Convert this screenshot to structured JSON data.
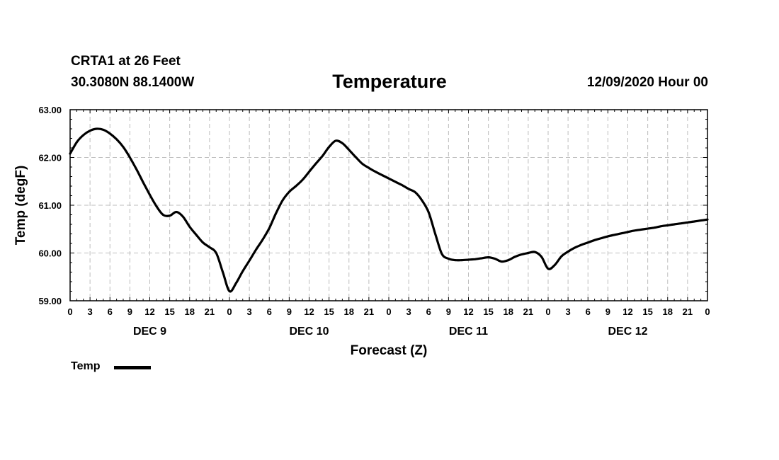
{
  "header": {
    "station": "CRTA1 at 26 Feet",
    "coords": "30.3080N 88.1400W",
    "title": "Temperature",
    "datetime": "12/09/2020 Hour 00"
  },
  "chart_data": {
    "type": "line",
    "title": "Temperature",
    "xlabel": "Forecast (Z)",
    "ylabel": "Temp (degF)",
    "ylim": [
      59.0,
      63.0
    ],
    "yticks": [
      "59.00",
      "60.00",
      "61.00",
      "62.00",
      "63.00"
    ],
    "xlim_hours": [
      0,
      96
    ],
    "xtick_labels": [
      "0",
      "3",
      "6",
      "9",
      "12",
      "15",
      "18",
      "21",
      "0",
      "3",
      "6",
      "9",
      "12",
      "15",
      "18",
      "21",
      "0",
      "3",
      "6",
      "9",
      "12",
      "15",
      "18",
      "21",
      "0",
      "3",
      "6",
      "9",
      "12",
      "15",
      "18",
      "21",
      "0"
    ],
    "day_labels": [
      "DEC 9",
      "DEC 10",
      "DEC 11",
      "DEC 12"
    ],
    "grid": true,
    "legend": "bottom-left",
    "series": [
      {
        "name": "Temp",
        "color": "#000000",
        "x": [
          0,
          1,
          2,
          3,
          4,
          5,
          6,
          7,
          8,
          9,
          10,
          11,
          12,
          13,
          14,
          15,
          16,
          17,
          18,
          19,
          20,
          21,
          22,
          23,
          24,
          25,
          26,
          27,
          28,
          29,
          30,
          31,
          32,
          33,
          34,
          35,
          36,
          37,
          38,
          39,
          40,
          41,
          42,
          43,
          44,
          45,
          46,
          47,
          48,
          49,
          50,
          51,
          52,
          53,
          54,
          55,
          56,
          57,
          58,
          59,
          60,
          61,
          62,
          63,
          64,
          65,
          66,
          67,
          68,
          69,
          70,
          71,
          72,
          73,
          74,
          75,
          76,
          77,
          78,
          79,
          80,
          81,
          82,
          83,
          84,
          85,
          86,
          87,
          88,
          89,
          90,
          91,
          92,
          93,
          94,
          95,
          96
        ],
        "y": [
          62.08,
          62.32,
          62.47,
          62.56,
          62.6,
          62.58,
          62.5,
          62.38,
          62.22,
          62.0,
          61.75,
          61.48,
          61.22,
          60.98,
          60.8,
          60.78,
          60.86,
          60.76,
          60.55,
          60.38,
          60.22,
          60.12,
          60.0,
          59.6,
          59.2,
          59.37,
          59.62,
          59.84,
          60.07,
          60.28,
          60.52,
          60.83,
          61.1,
          61.28,
          61.4,
          61.53,
          61.7,
          61.87,
          62.03,
          62.22,
          62.35,
          62.3,
          62.16,
          62.01,
          61.87,
          61.78,
          61.7,
          61.63,
          61.56,
          61.49,
          61.42,
          61.34,
          61.27,
          61.1,
          60.85,
          60.4,
          59.98,
          59.88,
          59.85,
          59.85,
          59.86,
          59.87,
          59.89,
          59.91,
          59.88,
          59.82,
          59.85,
          59.92,
          59.97,
          60.0,
          60.02,
          59.92,
          59.67,
          59.75,
          59.93,
          60.03,
          60.11,
          60.17,
          60.22,
          60.27,
          60.31,
          60.35,
          60.38,
          60.41,
          60.44,
          60.47,
          60.49,
          60.51,
          60.53,
          60.56,
          60.58,
          60.6,
          60.62,
          60.64,
          60.66,
          60.68,
          60.7
        ]
      }
    ]
  }
}
